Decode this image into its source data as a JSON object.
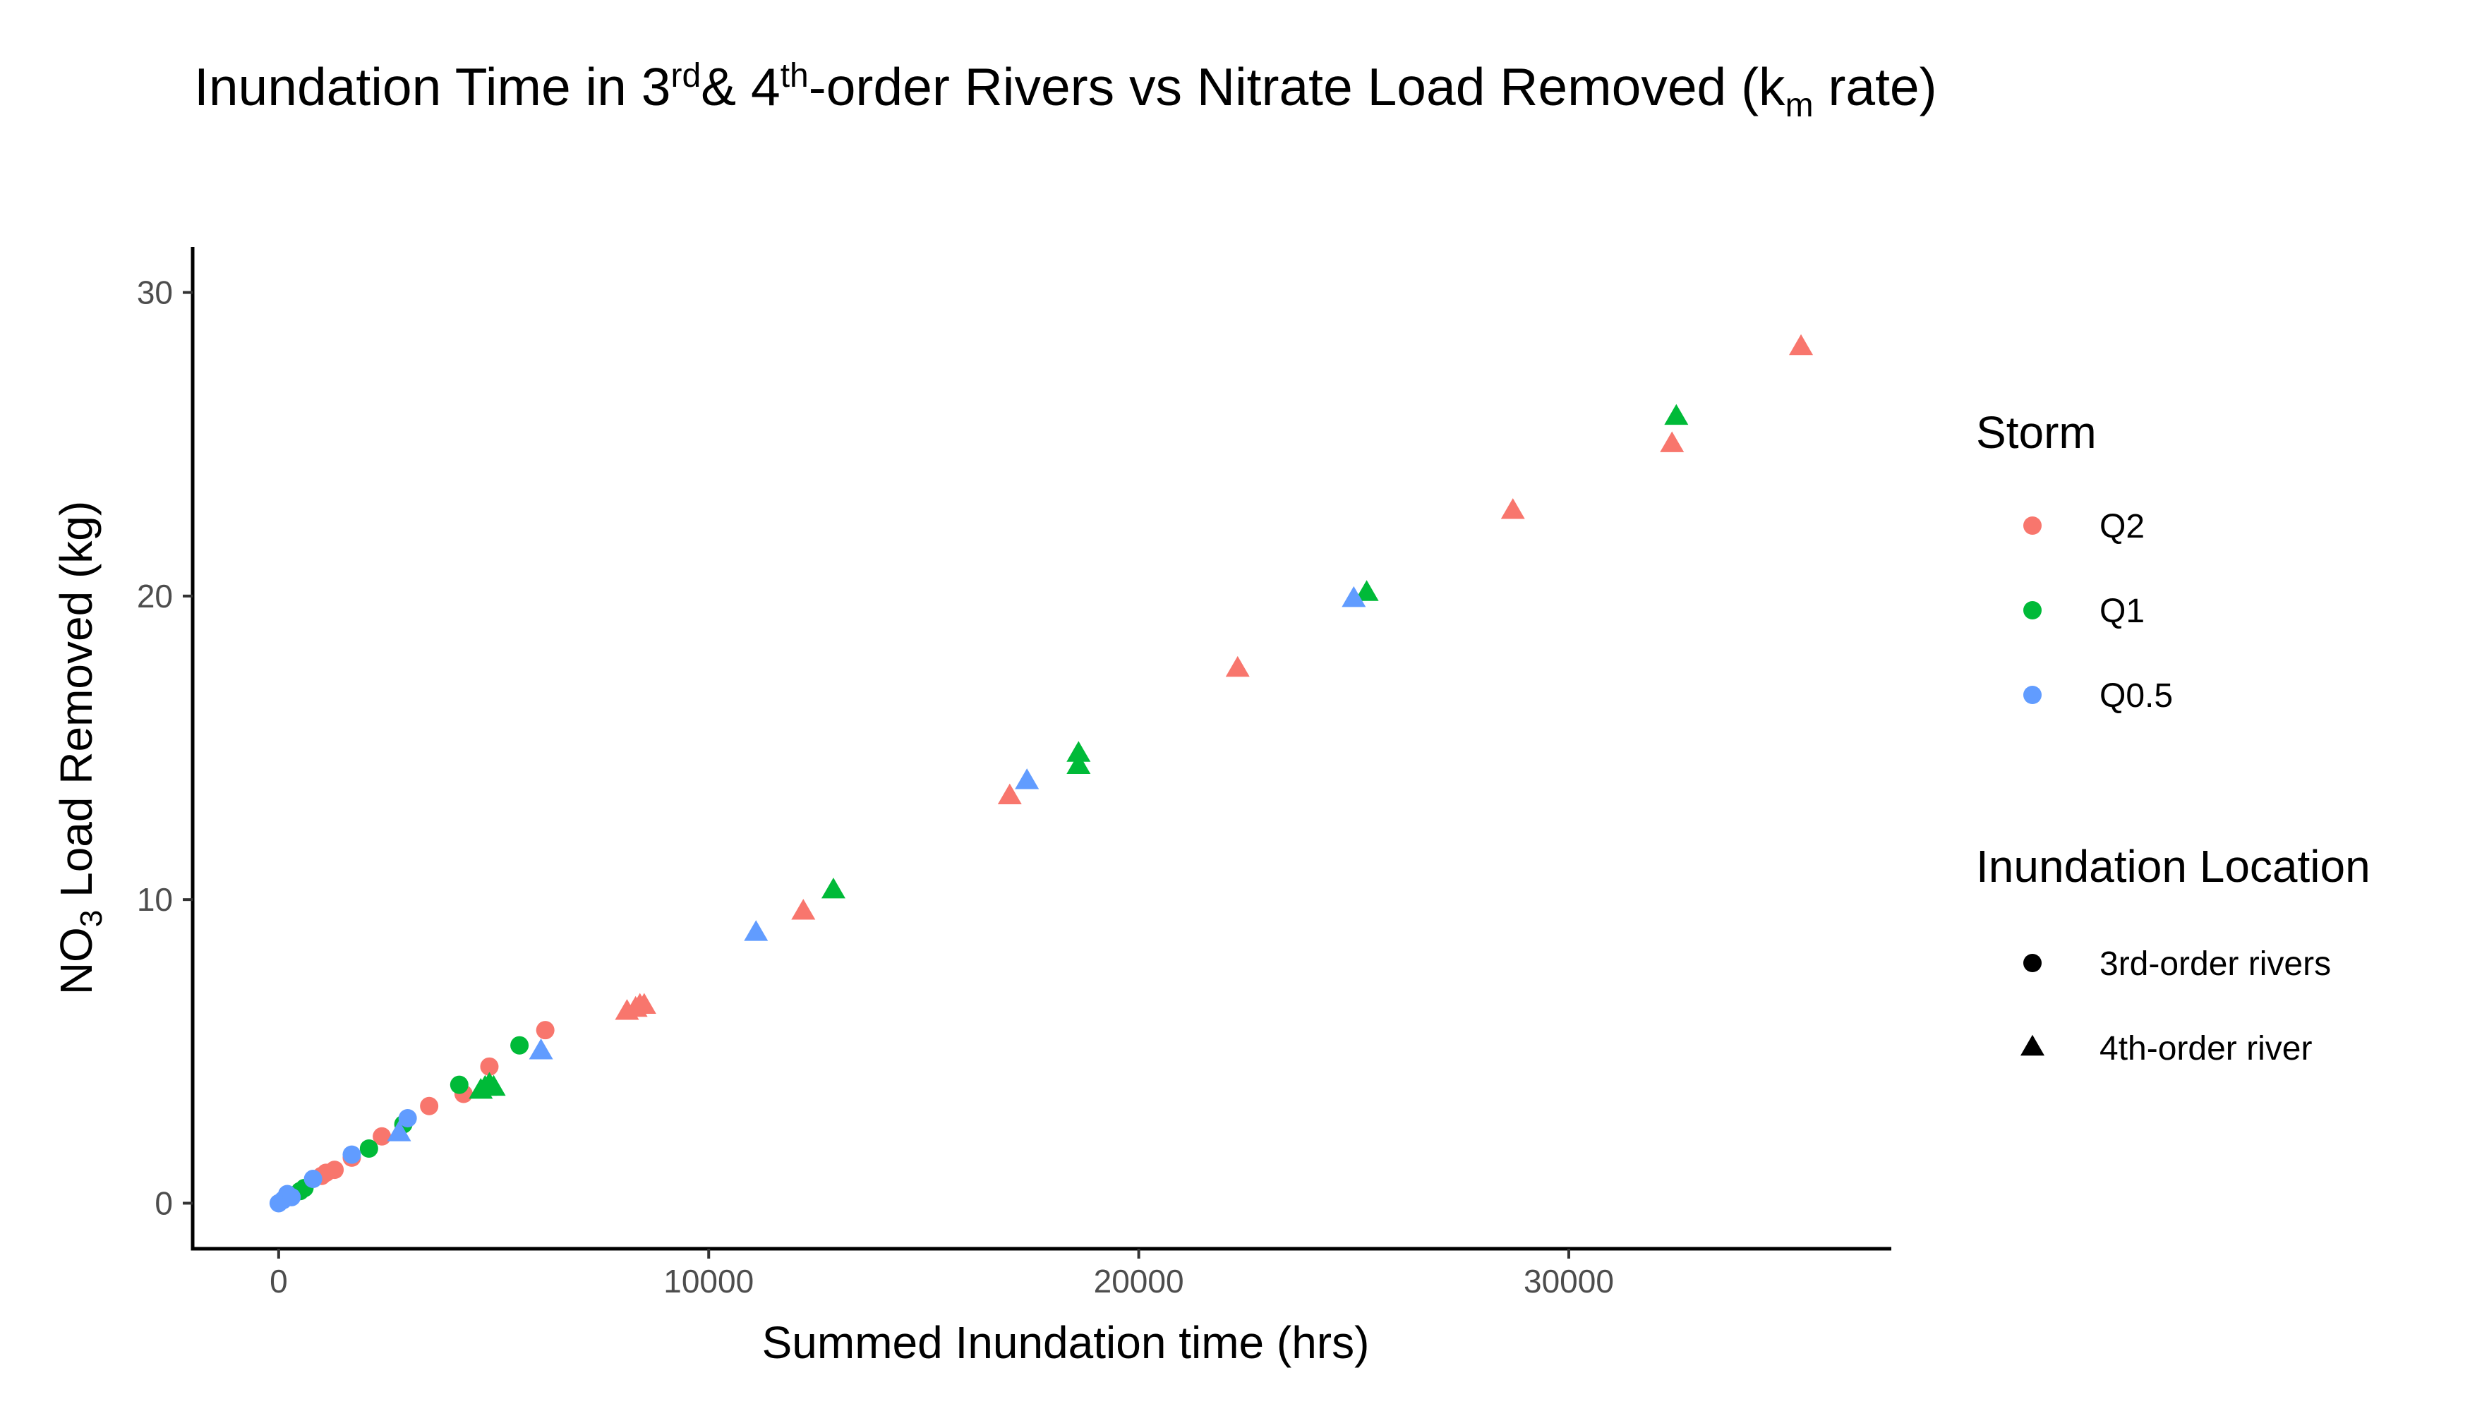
{
  "title": {
    "pre": "Inundation Time in 3",
    "sup1": "rd",
    "mid1": "& 4",
    "sup2": "th",
    "mid2": "-order Rivers vs Nitrate Load Removed (k",
    "sub": "m",
    "post": " rate)"
  },
  "chart_data": {
    "type": "scatter",
    "xlabel": "Summed Inundation time (hrs)",
    "ylabel": {
      "pre": "NO",
      "sub": "3",
      "post": " Load Removed (kg)"
    },
    "xlim": [
      -2000,
      37500
    ],
    "ylim": [
      -1.5,
      31.5
    ],
    "x_ticks": [
      0,
      10000,
      20000,
      30000
    ],
    "y_ticks": [
      0,
      10,
      20,
      30
    ],
    "legend": {
      "position": "right",
      "color_title": "Storm",
      "shape_title": "Inundation Location",
      "colors": [
        {
          "label": "Q2",
          "color": "#F8766D"
        },
        {
          "label": "Q1",
          "color": "#00BA38"
        },
        {
          "label": "Q0.5",
          "color": "#619CFF"
        }
      ],
      "shapes": [
        {
          "label": "3rd-order rivers",
          "shape": "circle"
        },
        {
          "label": "4th-order river",
          "shape": "triangle"
        }
      ]
    },
    "series": [
      {
        "storm": "Q2",
        "location": "3rd-order rivers",
        "color": "#F8766D",
        "shape": "circle",
        "points": [
          [
            1000,
            0.9
          ],
          [
            1100,
            1.0
          ],
          [
            1300,
            1.1
          ],
          [
            1700,
            1.5
          ],
          [
            2400,
            2.2
          ],
          [
            3500,
            3.2
          ],
          [
            4300,
            3.6
          ],
          [
            4900,
            4.5
          ],
          [
            6200,
            5.7
          ]
        ]
      },
      {
        "storm": "Q2",
        "location": "4th-order river",
        "color": "#F8766D",
        "shape": "triangle",
        "points": [
          [
            8100,
            6.3
          ],
          [
            8300,
            6.4
          ],
          [
            8400,
            6.5
          ],
          [
            8500,
            6.5
          ],
          [
            12200,
            9.6
          ],
          [
            17000,
            13.4
          ],
          [
            22300,
            17.6
          ],
          [
            28700,
            22.8
          ],
          [
            32400,
            25.0
          ],
          [
            35400,
            28.2
          ]
        ]
      },
      {
        "storm": "Q1",
        "location": "3rd-order rivers",
        "color": "#00BA38",
        "shape": "circle",
        "points": [
          [
            500,
            0.4
          ],
          [
            600,
            0.5
          ],
          [
            2100,
            1.8
          ],
          [
            2900,
            2.6
          ],
          [
            4200,
            3.9
          ],
          [
            5600,
            5.2
          ]
        ]
      },
      {
        "storm": "Q1",
        "location": "4th-order river",
        "color": "#00BA38",
        "shape": "triangle",
        "points": [
          [
            4700,
            3.7
          ],
          [
            4800,
            3.8
          ],
          [
            4900,
            3.9
          ],
          [
            5000,
            3.8
          ],
          [
            12900,
            10.3
          ],
          [
            18600,
            14.4
          ],
          [
            18600,
            14.8
          ],
          [
            25300,
            20.1
          ],
          [
            32500,
            25.9
          ]
        ]
      },
      {
        "storm": "Q0.5",
        "location": "3rd-order rivers",
        "color": "#619CFF",
        "shape": "circle",
        "points": [
          [
            0,
            0.0
          ],
          [
            100,
            0.1
          ],
          [
            200,
            0.3
          ],
          [
            300,
            0.2
          ],
          [
            800,
            0.8
          ],
          [
            1700,
            1.6
          ],
          [
            3000,
            2.8
          ]
        ]
      },
      {
        "storm": "Q0.5",
        "location": "4th-order river",
        "color": "#619CFF",
        "shape": "triangle",
        "points": [
          [
            2800,
            2.3
          ],
          [
            6100,
            5.0
          ],
          [
            11100,
            8.9
          ],
          [
            17400,
            13.9
          ],
          [
            25000,
            19.9
          ]
        ]
      }
    ]
  }
}
